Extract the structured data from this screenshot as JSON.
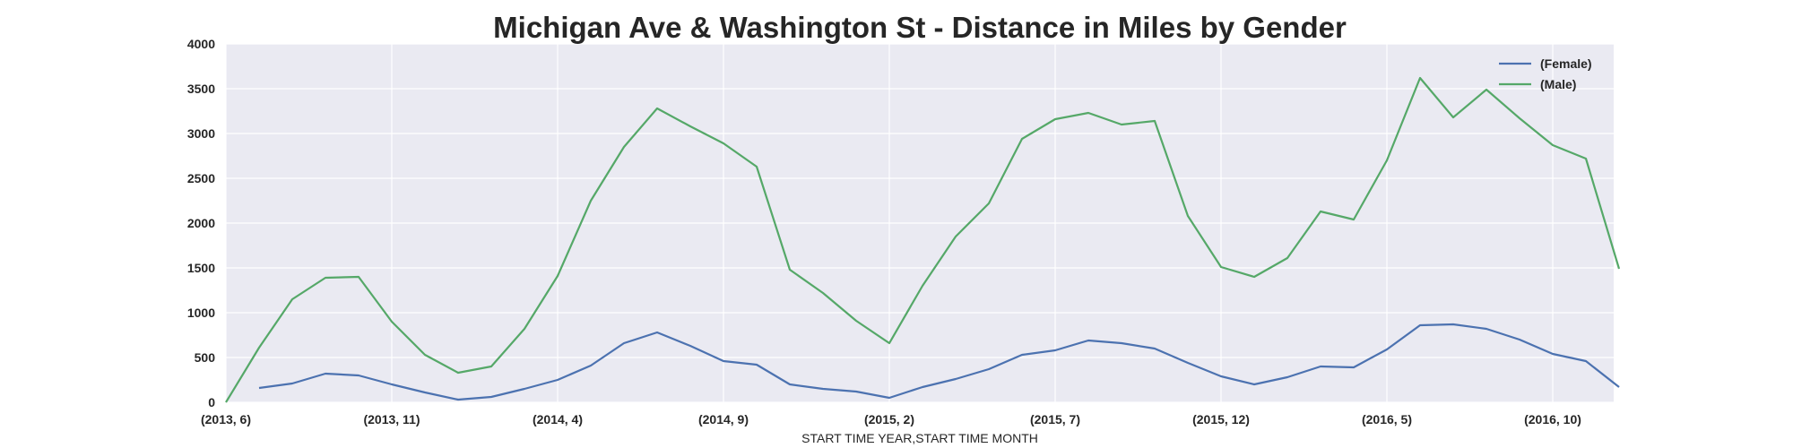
{
  "chart_data": {
    "type": "line",
    "title": "Michigan Ave & Washington St - Distance in Miles by Gender",
    "xlabel": "START TIME YEAR,START TIME MONTH",
    "ylabel": "",
    "ylim": [
      0,
      4000
    ],
    "yticks": [
      0,
      500,
      1000,
      1500,
      2000,
      2500,
      3000,
      3500,
      4000
    ],
    "x_tick_labels": [
      "(2013, 6)",
      "(2013, 11)",
      "(2014, 4)",
      "(2014, 9)",
      "(2015, 2)",
      "(2015, 7)",
      "(2015, 12)",
      "(2016, 5)",
      "(2016, 10)"
    ],
    "x_tick_every": 5,
    "categories": [
      "(2013, 6)",
      "(2013, 7)",
      "(2013, 8)",
      "(2013, 9)",
      "(2013, 10)",
      "(2013, 11)",
      "(2013, 12)",
      "(2014, 1)",
      "(2014, 2)",
      "(2014, 3)",
      "(2014, 4)",
      "(2014, 5)",
      "(2014, 6)",
      "(2014, 7)",
      "(2014, 8)",
      "(2014, 9)",
      "(2014, 10)",
      "(2014, 11)",
      "(2014, 12)",
      "(2015, 1)",
      "(2015, 2)",
      "(2015, 3)",
      "(2015, 4)",
      "(2015, 5)",
      "(2015, 6)",
      "(2015, 7)",
      "(2015, 8)",
      "(2015, 9)",
      "(2015, 10)",
      "(2015, 11)",
      "(2015, 12)",
      "(2016, 1)",
      "(2016, 2)",
      "(2016, 3)",
      "(2016, 4)",
      "(2016, 5)",
      "(2016, 6)",
      "(2016, 7)",
      "(2016, 8)",
      "(2016, 9)",
      "(2016, 10)",
      "(2016, 11)",
      "(2016, 12)"
    ],
    "grid": true,
    "legend_position": "top-right",
    "background": "#eaeaf2",
    "series": [
      {
        "name": "(Female)",
        "color": "#4c72b0",
        "values": [
          null,
          160,
          210,
          320,
          300,
          200,
          110,
          30,
          60,
          150,
          250,
          410,
          660,
          780,
          630,
          460,
          420,
          200,
          150,
          120,
          50,
          170,
          260,
          370,
          530,
          580,
          690,
          660,
          600,
          440,
          290,
          200,
          280,
          400,
          390,
          590,
          860,
          870,
          820,
          700,
          540,
          460,
          170
        ]
      },
      {
        "name": "(Male)",
        "color": "#55a868",
        "values": [
          0,
          610,
          1150,
          1390,
          1400,
          900,
          530,
          330,
          400,
          820,
          1410,
          2250,
          2850,
          3280,
          3080,
          2890,
          2630,
          1480,
          1220,
          910,
          660,
          1300,
          1850,
          2220,
          2940,
          3160,
          3230,
          3100,
          3140,
          2080,
          1510,
          1400,
          1610,
          2130,
          2040,
          2700,
          3620,
          3180,
          3490,
          3170,
          2870,
          2720,
          1490
        ]
      }
    ]
  }
}
